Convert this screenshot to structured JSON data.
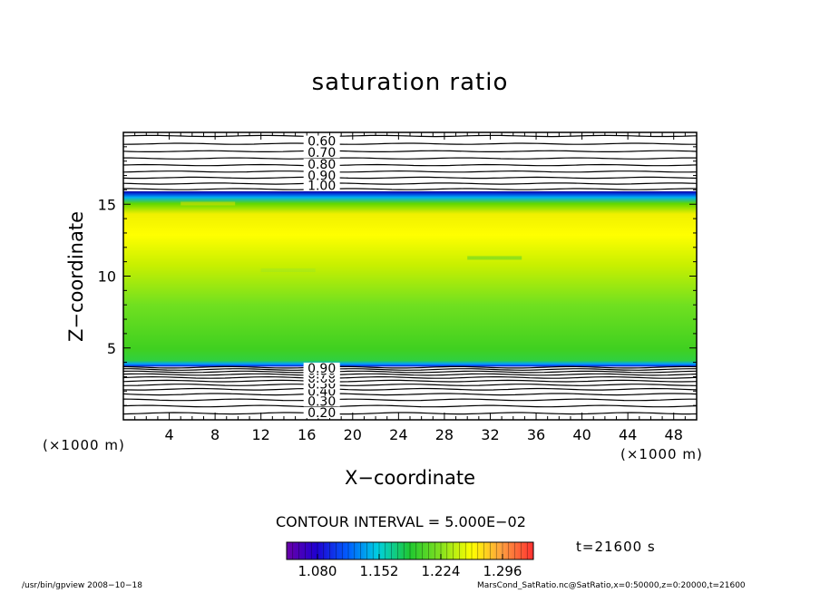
{
  "chart_data": {
    "type": "heatmap",
    "title": "saturation ratio",
    "xlabel": "X−coordinate",
    "ylabel": "Z−coordinate",
    "x_unit": "(×1000 m)",
    "z_unit": "(×1000 m)",
    "xlim": [
      0,
      50
    ],
    "ylim": [
      0,
      20
    ],
    "x_ticks": [
      4,
      8,
      12,
      16,
      20,
      24,
      28,
      32,
      36,
      40,
      44,
      48
    ],
    "y_ticks": [
      5,
      10,
      15
    ],
    "grid": false,
    "fill_band": {
      "z_bottom": 3.7,
      "z_top": 15.9,
      "level_range": [
        1.08,
        1.3
      ]
    },
    "contour_interval_text": "CONTOUR INTERVAL = 5.000E−02",
    "contour_interval": 0.05,
    "upper_contour_labels": [
      {
        "text": "0.60",
        "z": 19.4
      },
      {
        "text": "0.70",
        "z": 18.6
      },
      {
        "text": "0.80",
        "z": 17.8
      },
      {
        "text": "0.90",
        "z": 17.0
      },
      {
        "text": "1.00",
        "z": 16.3
      }
    ],
    "lower_contour_labels": [
      {
        "text": "0.20",
        "z": 0.5
      },
      {
        "text": "0.30",
        "z": 1.3
      },
      {
        "text": "0.40",
        "z": 2.0
      },
      {
        "text": "0.50",
        "z": 2.5
      },
      {
        "text": "0.60",
        "z": 2.9
      },
      {
        "text": "0.70",
        "z": 3.2
      },
      {
        "text": "0.80",
        "z": 3.45
      },
      {
        "text": "0.90",
        "z": 3.6
      }
    ],
    "colorbar": {
      "ticks": [
        1.08,
        1.152,
        1.224,
        1.296
      ],
      "tick_labels": [
        "1.080",
        "1.152",
        "1.224",
        "1.296"
      ],
      "range": [
        1.044,
        1.332
      ]
    },
    "time_label": "t=21600 s"
  },
  "footer": {
    "program": "/usr/bin/gpview   2008−10−18",
    "file": "MarsCond_SatRatio.nc@SatRatio,x=0:50000,z=0:20000,t=21600"
  }
}
